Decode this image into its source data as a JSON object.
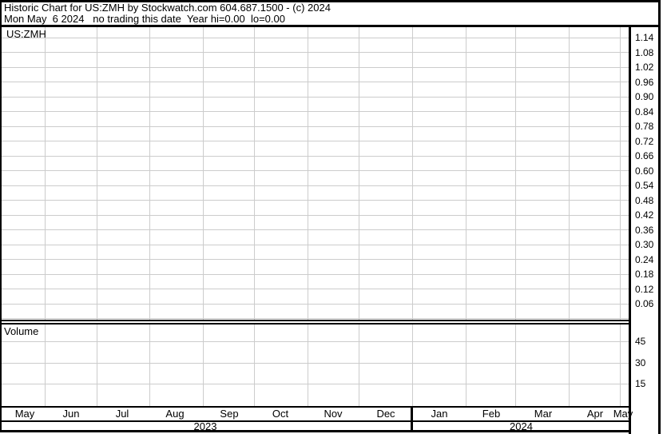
{
  "header": {
    "title": "Historic Chart for US:ZMH by Stockwatch.com 604.687.1500 - (c) 2024",
    "subtitle": "Mon May  6 2024   no trading this date  Year hi=0.00  lo=0.00"
  },
  "price_panel": {
    "symbol_label": "US:ZMH",
    "axis_labels": [
      "1.14",
      "1.08",
      "1.02",
      "0.96",
      "0.90",
      "0.84",
      "0.78",
      "0.72",
      "0.66",
      "0.60",
      "0.54",
      "0.48",
      "0.42",
      "0.36",
      "0.30",
      "0.24",
      "0.18",
      "0.12",
      "0.06"
    ]
  },
  "volume_panel": {
    "label": "Volume",
    "axis_labels": [
      "45",
      "30",
      "15"
    ]
  },
  "x_axis": {
    "months": [
      "May",
      "Jun",
      "Jul",
      "Aug",
      "Sep",
      "Oct",
      "Nov",
      "Dec",
      "Jan",
      "Feb",
      "Mar",
      "Apr",
      "May"
    ],
    "years": [
      "2023",
      "2024"
    ]
  },
  "colors": {
    "background": "#ffffff",
    "border": "#000000",
    "grid": "#cccccc",
    "text": "#000000"
  },
  "chart_data": {
    "type": "line",
    "title": "Historic Chart for US:ZMH",
    "subtitle": "Mon May  6 2024 - no trading this date",
    "series": [
      {
        "name": "US:ZMH price",
        "values": []
      },
      {
        "name": "US:ZMH volume",
        "values": []
      }
    ],
    "x_categories": [
      "May",
      "Jun",
      "Jul",
      "Aug",
      "Sep",
      "Oct",
      "Nov",
      "Dec",
      "Jan",
      "Feb",
      "Mar",
      "Apr",
      "May"
    ],
    "x_year_groups": [
      {
        "year": "2023",
        "months": [
          "May",
          "Jun",
          "Jul",
          "Aug",
          "Sep",
          "Oct",
          "Nov",
          "Dec"
        ]
      },
      {
        "year": "2024",
        "months": [
          "Jan",
          "Feb",
          "Mar",
          "Apr",
          "May"
        ]
      }
    ],
    "price_axis": {
      "ticks": [
        1.14,
        1.08,
        1.02,
        0.96,
        0.9,
        0.84,
        0.78,
        0.72,
        0.66,
        0.6,
        0.54,
        0.48,
        0.42,
        0.36,
        0.3,
        0.24,
        0.18,
        0.12,
        0.06
      ],
      "interval": 0.06,
      "range": [
        0.06,
        1.14
      ]
    },
    "volume_axis": {
      "ticks": [
        45,
        30,
        15
      ]
    },
    "annotations": [
      "no trading this date",
      "Year hi=0.00",
      "lo=0.00"
    ],
    "grid": true,
    "legend_position": "none"
  }
}
